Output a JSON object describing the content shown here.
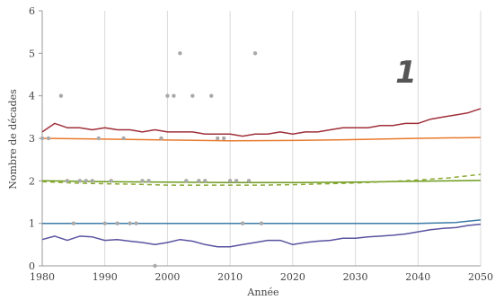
{
  "chart_data": {
    "type": "line",
    "panel_label": "1",
    "xlabel": "Année",
    "ylabel": "Nombre de décades",
    "xlim": [
      1980,
      2050
    ],
    "ylim": [
      0,
      6
    ],
    "x_ticks": [
      "1980",
      "1990",
      "2000",
      "2010",
      "2020",
      "2030",
      "2040",
      "2050"
    ],
    "y_ticks": [
      "0",
      "1",
      "2",
      "3",
      "4",
      "5",
      "6"
    ],
    "grid": "vertical",
    "colors": {
      "dark_red": "#a0303a",
      "orange": "#e8792c",
      "green": "#6c9a1c",
      "dashed_green": "#8aa832",
      "blue": "#3d7ba8",
      "purple": "#5a53a0",
      "points": "#a9a9a9",
      "grid": "#d9d9d9",
      "axis": "#9a9a9a"
    },
    "series": [
      {
        "color_key": "dark_red",
        "style": "solid",
        "x": [
          1980,
          1982,
          1984,
          1986,
          1988,
          1990,
          1992,
          1994,
          1996,
          1998,
          2000,
          2002,
          2004,
          2006,
          2008,
          2010,
          2012,
          2014,
          2016,
          2018,
          2020,
          2022,
          2024,
          2026,
          2028,
          2030,
          2032,
          2034,
          2036,
          2038,
          2040,
          2042,
          2044,
          2046,
          2048,
          2050
        ],
        "y": [
          3.15,
          3.35,
          3.25,
          3.25,
          3.2,
          3.25,
          3.2,
          3.2,
          3.15,
          3.2,
          3.15,
          3.15,
          3.15,
          3.1,
          3.1,
          3.1,
          3.05,
          3.1,
          3.1,
          3.15,
          3.1,
          3.15,
          3.15,
          3.2,
          3.25,
          3.25,
          3.25,
          3.3,
          3.3,
          3.35,
          3.35,
          3.45,
          3.5,
          3.55,
          3.6,
          3.7
        ]
      },
      {
        "color_key": "orange",
        "style": "solid",
        "x": [
          1980,
          1990,
          2000,
          2010,
          2020,
          2030,
          2040,
          2050
        ],
        "y": [
          3.0,
          2.98,
          2.96,
          2.94,
          2.95,
          2.97,
          3.0,
          3.02
        ]
      },
      {
        "color_key": "green",
        "style": "solid",
        "x": [
          1980,
          1990,
          2000,
          2010,
          2020,
          2030,
          2040,
          2050
        ],
        "y": [
          2.0,
          1.98,
          1.97,
          1.96,
          1.96,
          1.97,
          1.99,
          2.01
        ]
      },
      {
        "color_key": "dashed_green",
        "style": "dashed",
        "x": [
          1980,
          1985,
          1990,
          1995,
          2000,
          2005,
          2010,
          2015,
          2020,
          2025,
          2030,
          2035,
          2040,
          2045,
          2050
        ],
        "y": [
          1.98,
          1.95,
          1.93,
          1.92,
          1.9,
          1.9,
          1.9,
          1.9,
          1.91,
          1.93,
          1.95,
          1.98,
          2.02,
          2.07,
          2.15
        ]
      },
      {
        "color_key": "blue",
        "style": "solid",
        "x": [
          1980,
          1990,
          2000,
          2010,
          2020,
          2030,
          2040,
          2046,
          2048,
          2050
        ],
        "y": [
          1.0,
          1.0,
          1.0,
          1.0,
          1.0,
          1.0,
          1.0,
          1.02,
          1.05,
          1.08
        ]
      },
      {
        "color_key": "purple",
        "style": "solid",
        "x": [
          1980,
          1982,
          1984,
          1986,
          1988,
          1990,
          1992,
          1994,
          1996,
          1998,
          2000,
          2002,
          2004,
          2006,
          2008,
          2010,
          2012,
          2014,
          2016,
          2018,
          2020,
          2022,
          2024,
          2026,
          2028,
          2030,
          2032,
          2034,
          2036,
          2038,
          2040,
          2042,
          2044,
          2046,
          2048,
          2050
        ],
        "y": [
          0.62,
          0.7,
          0.6,
          0.7,
          0.68,
          0.6,
          0.62,
          0.58,
          0.55,
          0.5,
          0.55,
          0.62,
          0.58,
          0.5,
          0.45,
          0.45,
          0.5,
          0.55,
          0.6,
          0.6,
          0.5,
          0.55,
          0.58,
          0.6,
          0.65,
          0.65,
          0.68,
          0.7,
          0.72,
          0.75,
          0.8,
          0.85,
          0.88,
          0.9,
          0.95,
          0.98
        ]
      }
    ],
    "scatter_points": [
      [
        1980,
        3
      ],
      [
        1981,
        3
      ],
      [
        1983,
        4
      ],
      [
        1984,
        2
      ],
      [
        1985,
        1
      ],
      [
        1986,
        2
      ],
      [
        1987,
        2
      ],
      [
        1988,
        2
      ],
      [
        1989,
        3
      ],
      [
        1990,
        1
      ],
      [
        1991,
        2
      ],
      [
        1992,
        1
      ],
      [
        1993,
        3
      ],
      [
        1994,
        1
      ],
      [
        1995,
        1
      ],
      [
        1996,
        2
      ],
      [
        1997,
        2
      ],
      [
        1998,
        0
      ],
      [
        1999,
        3
      ],
      [
        2000,
        4
      ],
      [
        2001,
        4
      ],
      [
        2002,
        5
      ],
      [
        2003,
        2
      ],
      [
        2004,
        4
      ],
      [
        2005,
        2
      ],
      [
        2006,
        2
      ],
      [
        2007,
        4
      ],
      [
        2008,
        3
      ],
      [
        2009,
        3
      ],
      [
        2010,
        2
      ],
      [
        2011,
        2
      ],
      [
        2012,
        1
      ],
      [
        2013,
        2
      ],
      [
        2014,
        5
      ],
      [
        2015,
        1
      ]
    ]
  }
}
